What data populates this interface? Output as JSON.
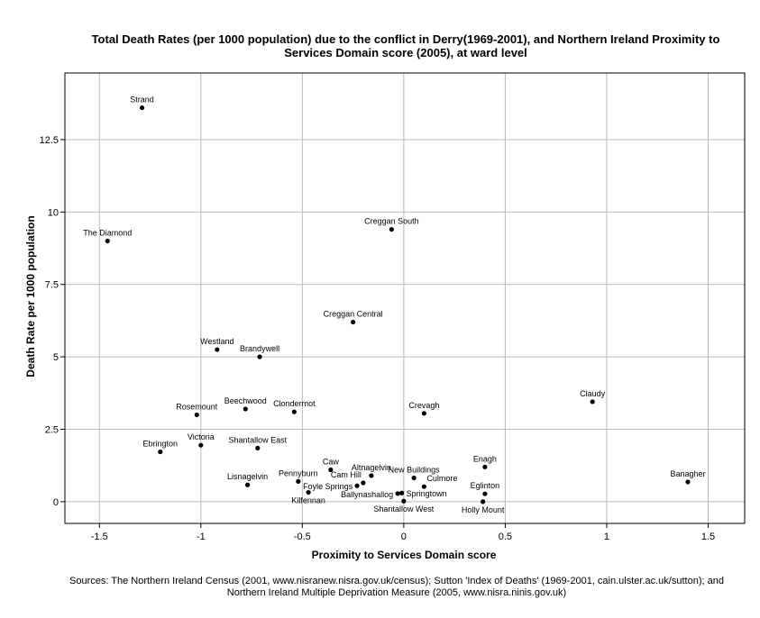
{
  "chart_data": {
    "type": "scatter",
    "title": "Total Death Rates (per 1000 population) due to the conflict in Derry(1969-2001), and Northern Ireland Proximity to Services Domain score (2005), at ward level",
    "title_lines": [
      "Total Death Rates (per 1000 population) due to the conflict in Derry(1969-2001), and Northern Ireland Proximity to",
      "Services Domain score (2005), at ward level"
    ],
    "xlabel": "Proximity to Services Domain score",
    "ylabel": "Death Rate per 1000 population",
    "xlim": [
      -1.67,
      1.68
    ],
    "ylim": [
      -0.75,
      14.8
    ],
    "x_ticks": [
      -1.5,
      -1,
      -0.5,
      0,
      0.5,
      1,
      1.5
    ],
    "x_tick_labels": [
      "-1.5",
      "-1",
      "-0.5",
      "0",
      "0.5",
      "1",
      "1.5"
    ],
    "y_ticks": [
      0,
      2.5,
      5,
      7.5,
      10,
      12.5
    ],
    "y_tick_labels": [
      "0",
      "2.5",
      "5",
      "7.5",
      "10",
      "12.5"
    ],
    "grid": true,
    "points": [
      {
        "label": "Strand",
        "x": -1.29,
        "y": 13.6,
        "label_pos": "above"
      },
      {
        "label": "The Diamond",
        "x": -1.46,
        "y": 9.0,
        "label_pos": "above"
      },
      {
        "label": "Creggan South",
        "x": -0.06,
        "y": 9.4,
        "label_pos": "above"
      },
      {
        "label": "Creggan Central",
        "x": -0.25,
        "y": 6.2,
        "label_pos": "above"
      },
      {
        "label": "Westland",
        "x": -0.92,
        "y": 5.25,
        "label_pos": "above"
      },
      {
        "label": "Brandywell",
        "x": -0.71,
        "y": 5.0,
        "label_pos": "above"
      },
      {
        "label": "Rosemount",
        "x": -1.02,
        "y": 3.0,
        "label_pos": "above"
      },
      {
        "label": "Beechwood",
        "x": -0.78,
        "y": 3.2,
        "label_pos": "above"
      },
      {
        "label": "Clondermot",
        "x": -0.54,
        "y": 3.1,
        "label_pos": "above"
      },
      {
        "label": "Crevagh",
        "x": 0.1,
        "y": 3.05,
        "label_pos": "above"
      },
      {
        "label": "Claudy",
        "x": 0.93,
        "y": 3.45,
        "label_pos": "above"
      },
      {
        "label": "Ebrington",
        "x": -1.2,
        "y": 1.72,
        "label_pos": "above"
      },
      {
        "label": "Victoria",
        "x": -1.0,
        "y": 1.95,
        "label_pos": "above"
      },
      {
        "label": "Shantallow East",
        "x": -0.72,
        "y": 1.85,
        "label_pos": "above"
      },
      {
        "label": "Caw",
        "x": -0.36,
        "y": 1.1,
        "label_pos": "above"
      },
      {
        "label": "Altnagelvin",
        "x": -0.16,
        "y": 0.9,
        "label_pos": "above"
      },
      {
        "label": "Enagh",
        "x": 0.4,
        "y": 1.2,
        "label_pos": "above"
      },
      {
        "label": "Banagher",
        "x": 1.4,
        "y": 0.68,
        "label_pos": "above"
      },
      {
        "label": "New Buildings",
        "x": 0.05,
        "y": 0.82,
        "label_pos": "above"
      },
      {
        "label": "Culmore",
        "x": 0.1,
        "y": 0.52,
        "label_pos": "right-above"
      },
      {
        "label": "Lisnagelvin",
        "x": -0.77,
        "y": 0.58,
        "label_pos": "above"
      },
      {
        "label": "Pennyburn",
        "x": -0.52,
        "y": 0.7,
        "label_pos": "above"
      },
      {
        "label": "Cam Hill",
        "x": -0.2,
        "y": 0.65,
        "label_pos": "left-above"
      },
      {
        "label": "Foyle Springs",
        "x": -0.23,
        "y": 0.55,
        "label_pos": "left"
      },
      {
        "label": "Kilfennan",
        "x": -0.47,
        "y": 0.32,
        "label_pos": "below"
      },
      {
        "label": "Eglinton",
        "x": 0.4,
        "y": 0.27,
        "label_pos": "above"
      },
      {
        "label": "Ballynashallog",
        "x": -0.03,
        "y": 0.28,
        "label_pos": "left"
      },
      {
        "label": "Springtown",
        "x": -0.01,
        "y": 0.3,
        "label_pos": "right"
      },
      {
        "label": "Shantallow West",
        "x": 0.0,
        "y": 0.02,
        "label_pos": "below"
      },
      {
        "label": "Holly Mount",
        "x": 0.39,
        "y": 0.0,
        "label_pos": "below"
      }
    ]
  },
  "caption_lines": [
    "Sources: The Northern Ireland Census (2001, www.nisranew.nisra.gov.uk/census); Sutton 'Index of Deaths' (1969-2001, cain.ulster.ac.uk/sutton); and",
    "Northern Ireland Multiple Deprivation Measure (2005, www.nisra.ninis.gov.uk)"
  ]
}
